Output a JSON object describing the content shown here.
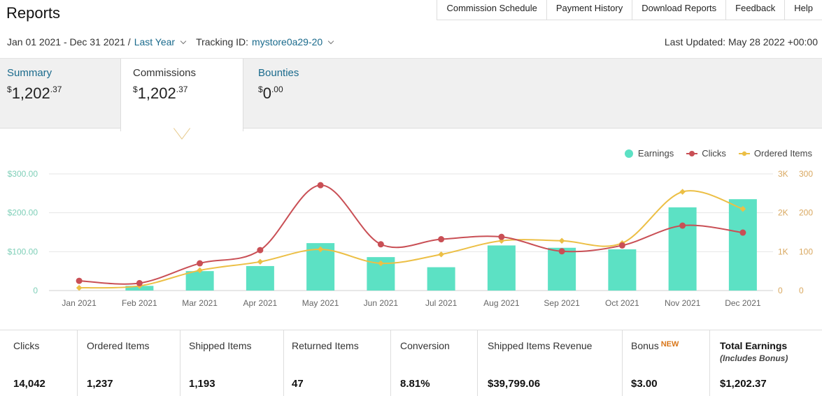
{
  "page": {
    "title": "Reports"
  },
  "topnav": [
    "Commission Schedule",
    "Payment History",
    "Download Reports",
    "Feedback",
    "Help"
  ],
  "filters": {
    "date_range": "Jan 01 2021 - Dec 31 2021 /",
    "period": "Last Year",
    "tracking_label": "Tracking ID:",
    "tracking_id": "mystore0a29-20",
    "last_updated": "Last Updated: May 28 2022 +00:00"
  },
  "tabs": {
    "summary": {
      "label": "Summary",
      "currency": "$",
      "whole": "1,202",
      "cents": ".37"
    },
    "commissions": {
      "label": "Commissions",
      "currency": "$",
      "whole": "1,202",
      "cents": ".37"
    },
    "bounties": {
      "label": "Bounties",
      "currency": "$",
      "whole": "0",
      "cents": ".00"
    }
  },
  "legend": {
    "earnings": "Earnings",
    "clicks": "Clicks",
    "ordered": "Ordered Items"
  },
  "colors": {
    "earnings": "#5ce1c4",
    "clicks": "#c94f55",
    "ordered": "#ecbf45",
    "link": "#1a6a8c",
    "axis_left": "#7fcfb8",
    "axis_right": "#d9a860"
  },
  "chart_data": {
    "type": "bar",
    "categories": [
      "Jan 2021",
      "Feb 2021",
      "Mar 2021",
      "Apr 2021",
      "May 2021",
      "Jun 2021",
      "Jul 2021",
      "Aug 2021",
      "Sep 2021",
      "Oct 2021",
      "Nov 2021",
      "Dec 2021"
    ],
    "series": [
      {
        "name": "Earnings",
        "type": "bar",
        "axis": "left",
        "values": [
          0,
          12,
          50,
          63,
          122,
          86,
          60,
          116,
          110,
          106,
          214,
          235
        ]
      },
      {
        "name": "Clicks",
        "type": "line",
        "axis": "right1",
        "values": [
          250,
          190,
          700,
          1040,
          2710,
          1190,
          1320,
          1380,
          1010,
          1160,
          1670,
          1490
        ]
      },
      {
        "name": "Ordered Items",
        "type": "line",
        "axis": "right2",
        "values": [
          7,
          12,
          52,
          74,
          106,
          70,
          93,
          128,
          128,
          122,
          254,
          210
        ]
      }
    ],
    "y_left": {
      "ticks": [
        "0",
        "$100.00",
        "$200.00",
        "$300.00"
      ],
      "range": [
        0,
        300
      ]
    },
    "y_right1": {
      "ticks": [
        "0",
        "1K",
        "2K",
        "3K"
      ],
      "range": [
        0,
        3000
      ]
    },
    "y_right2": {
      "ticks": [
        "0",
        "100",
        "200",
        "300"
      ],
      "range": [
        0,
        300
      ]
    },
    "grid": true,
    "legend_position": "top-right"
  },
  "stats": [
    {
      "label": "Clicks",
      "value": "14,042"
    },
    {
      "label": "Ordered Items",
      "value": "1,237"
    },
    {
      "label": "Shipped Items",
      "value": "1,193"
    },
    {
      "label": "Returned Items",
      "value": "47"
    },
    {
      "label": "Conversion",
      "value": "8.81%"
    },
    {
      "label": "Shipped Items Revenue",
      "value": "$39,799.06"
    },
    {
      "label": "Bonus",
      "badge": "NEW",
      "value": "$3.00"
    },
    {
      "label": "Total Earnings",
      "sub": "(Includes Bonus)",
      "value": "$1,202.37"
    }
  ]
}
